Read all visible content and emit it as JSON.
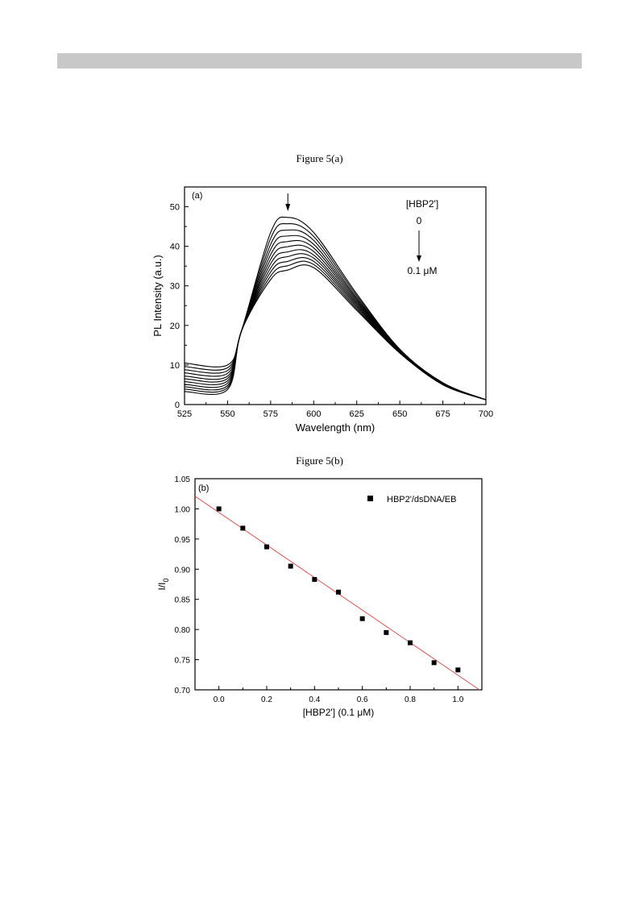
{
  "page": {
    "figure_a_caption": "Figure 5(a)",
    "figure_b_caption": "Figure 5(b)"
  },
  "chart_data": [
    {
      "type": "line",
      "panel_label": "(a)",
      "xlabel": "Wavelength (nm)",
      "ylabel": "PL Intensity (a.u.)",
      "xlim": [
        525,
        700
      ],
      "ylim": [
        0,
        55
      ],
      "xticks": [
        525,
        550,
        575,
        600,
        625,
        650,
        675,
        700
      ],
      "yticks": [
        0,
        10,
        20,
        30,
        40,
        50
      ],
      "grid": false,
      "legend": {
        "title": "[HBP2']",
        "start_label": "0",
        "end_label": "0.1 μM",
        "placement": "top-right"
      },
      "peak_arrow_x": 585,
      "line_color": "#000000",
      "x": [
        525,
        550,
        558,
        575,
        585,
        600,
        625,
        650,
        675,
        700
      ],
      "series": [
        {
          "values": [
            10.5,
            10.0,
            18.5,
            43.5,
            47.3,
            43.5,
            28.0,
            14.0,
            5.5,
            1.2
          ]
        },
        {
          "values": [
            9.6,
            9.3,
            18.5,
            42.0,
            45.7,
            42.5,
            27.5,
            13.9,
            5.5,
            1.2
          ]
        },
        {
          "values": [
            8.8,
            8.6,
            18.5,
            40.5,
            44.1,
            41.5,
            27.0,
            13.8,
            5.4,
            1.2
          ]
        },
        {
          "values": [
            8.0,
            7.9,
            18.5,
            39.2,
            42.6,
            40.5,
            26.6,
            13.7,
            5.4,
            1.2
          ]
        },
        {
          "values": [
            7.2,
            7.2,
            18.5,
            37.9,
            41.2,
            39.6,
            26.2,
            13.6,
            5.3,
            1.2
          ]
        },
        {
          "values": [
            6.5,
            6.6,
            18.5,
            36.7,
            39.9,
            38.7,
            25.8,
            13.5,
            5.3,
            1.2
          ]
        },
        {
          "values": [
            5.8,
            6.0,
            18.5,
            35.6,
            38.6,
            37.8,
            25.4,
            13.4,
            5.2,
            1.2
          ]
        },
        {
          "values": [
            5.1,
            5.4,
            18.5,
            34.5,
            37.4,
            37.0,
            25.0,
            13.3,
            5.2,
            1.2
          ]
        },
        {
          "values": [
            4.5,
            4.8,
            18.5,
            33.5,
            36.2,
            36.2,
            24.6,
            13.2,
            5.1,
            1.2
          ]
        },
        {
          "values": [
            3.9,
            4.3,
            18.5,
            32.5,
            35.1,
            35.4,
            24.2,
            13.1,
            5.1,
            1.2
          ]
        },
        {
          "values": [
            3.3,
            3.8,
            18.5,
            31.6,
            34.0,
            34.6,
            23.8,
            13.0,
            5.0,
            1.2
          ]
        }
      ]
    },
    {
      "type": "scatter",
      "panel_label": "(b)",
      "xlabel": "[HBP2'] (0.1 μM)",
      "ylabel": "I/I",
      "ylabel_subscript": "0",
      "xlim": [
        -0.1,
        1.1
      ],
      "ylim": [
        0.7,
        1.05
      ],
      "xticks": [
        0.0,
        0.2,
        0.4,
        0.6,
        0.8,
        1.0
      ],
      "yticks": [
        0.7,
        0.75,
        0.8,
        0.85,
        0.9,
        0.95,
        1.0,
        1.05
      ],
      "grid": false,
      "legend": {
        "entry": "HBP2'/dsDNA/EB",
        "placement": "top-right"
      },
      "marker_color": "#000000",
      "fit_color": "#e05050",
      "fit_line": {
        "x": [
          -0.1,
          1.09
        ],
        "y": [
          1.021,
          0.7
        ]
      },
      "x": [
        0.0,
        0.1,
        0.2,
        0.3,
        0.4,
        0.5,
        0.6,
        0.7,
        0.8,
        0.9,
        1.0
      ],
      "y": [
        1.0,
        0.968,
        0.937,
        0.905,
        0.883,
        0.862,
        0.818,
        0.795,
        0.778,
        0.745,
        0.733
      ]
    }
  ]
}
